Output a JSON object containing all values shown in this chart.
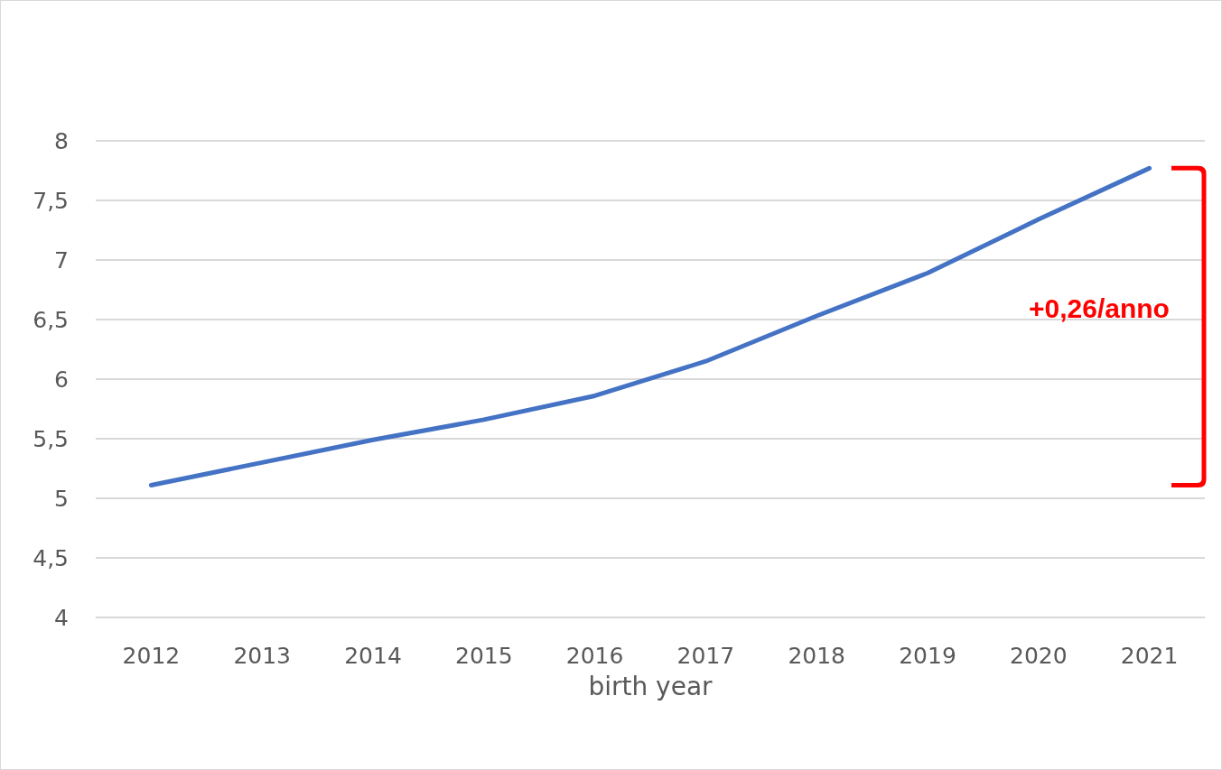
{
  "chart_data": {
    "type": "line",
    "xlabel": "birth year",
    "categories": [
      "2012",
      "2013",
      "2014",
      "2015",
      "2016",
      "2017",
      "2018",
      "2019",
      "2020",
      "2021"
    ],
    "series": [
      {
        "color": "#4472c4",
        "values": [
          5.11,
          5.3,
          5.49,
          5.66,
          5.86,
          6.15,
          6.53,
          6.89,
          7.34,
          7.77
        ]
      }
    ],
    "ylim": [
      4,
      8
    ],
    "yticks": [
      4,
      {
        "value": 4.5,
        "label": "4,5"
      },
      5,
      {
        "value": 5.5,
        "label": "5,5"
      },
      6,
      {
        "value": 6.5,
        "label": "6,5"
      },
      7,
      {
        "value": 7.5,
        "label": "7,5"
      },
      8
    ],
    "grid": "y",
    "marker": "none",
    "line_style": "solid",
    "annotations": [
      "+0,26/anno"
    ]
  }
}
